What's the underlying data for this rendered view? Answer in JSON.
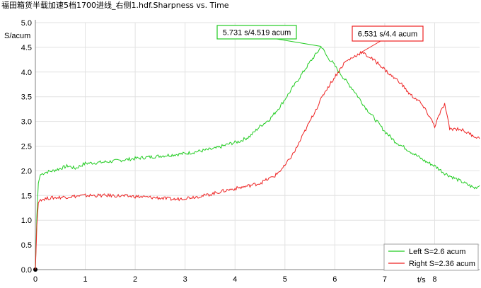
{
  "chart_data": {
    "type": "line",
    "title": "福田箱货半载加速5档1700进线_右侧1.hdf.Sharpness vs. Time",
    "ylabel": "S/acum",
    "xlabel": "t/s",
    "xlim": [
      0,
      8.9
    ],
    "ylim": [
      0,
      5.0
    ],
    "x_ticks": [
      0,
      1,
      2,
      3,
      4,
      5,
      6,
      7,
      8
    ],
    "y_ticks": [
      0.0,
      0.5,
      1.0,
      1.5,
      2.0,
      2.5,
      3.0,
      3.5,
      4.0,
      4.5,
      5.0
    ],
    "grid": true,
    "legend_position": "bottom-right",
    "series": [
      {
        "name": "Left S=2.6 acum",
        "color": "#22cc22",
        "points": [
          [
            0.0,
            0.0
          ],
          [
            0.03,
            1.1
          ],
          [
            0.06,
            1.75
          ],
          [
            0.1,
            1.92
          ],
          [
            0.2,
            1.97
          ],
          [
            0.35,
            2.0
          ],
          [
            0.5,
            2.05
          ],
          [
            0.65,
            2.1
          ],
          [
            0.8,
            2.05
          ],
          [
            1.0,
            2.15
          ],
          [
            1.3,
            2.17
          ],
          [
            1.6,
            2.2
          ],
          [
            2.0,
            2.25
          ],
          [
            2.5,
            2.3
          ],
          [
            3.0,
            2.35
          ],
          [
            3.3,
            2.4
          ],
          [
            3.6,
            2.45
          ],
          [
            3.9,
            2.55
          ],
          [
            4.1,
            2.6
          ],
          [
            4.3,
            2.7
          ],
          [
            4.5,
            2.9
          ],
          [
            4.7,
            3.05
          ],
          [
            4.9,
            3.3
          ],
          [
            5.1,
            3.6
          ],
          [
            5.3,
            3.9
          ],
          [
            5.5,
            4.2
          ],
          [
            5.65,
            4.4
          ],
          [
            5.731,
            4.519
          ],
          [
            5.85,
            4.3
          ],
          [
            5.95,
            4.2
          ],
          [
            6.05,
            4.05
          ],
          [
            6.2,
            3.85
          ],
          [
            6.4,
            3.6
          ],
          [
            6.6,
            3.3
          ],
          [
            6.8,
            3.05
          ],
          [
            7.0,
            2.8
          ],
          [
            7.2,
            2.6
          ],
          [
            7.5,
            2.4
          ],
          [
            7.8,
            2.2
          ],
          [
            8.0,
            2.1
          ],
          [
            8.2,
            1.95
          ],
          [
            8.4,
            1.85
          ],
          [
            8.6,
            1.75
          ],
          [
            8.8,
            1.65
          ],
          [
            8.9,
            1.7
          ]
        ]
      },
      {
        "name": "Right S=2.36 acum",
        "color": "#ee2222",
        "points": [
          [
            0.0,
            0.0
          ],
          [
            0.03,
            0.9
          ],
          [
            0.06,
            1.35
          ],
          [
            0.1,
            1.42
          ],
          [
            0.3,
            1.45
          ],
          [
            0.6,
            1.47
          ],
          [
            1.0,
            1.5
          ],
          [
            1.5,
            1.5
          ],
          [
            2.0,
            1.48
          ],
          [
            2.5,
            1.45
          ],
          [
            2.8,
            1.42
          ],
          [
            3.0,
            1.45
          ],
          [
            3.4,
            1.5
          ],
          [
            3.8,
            1.6
          ],
          [
            4.2,
            1.68
          ],
          [
            4.5,
            1.75
          ],
          [
            4.8,
            1.9
          ],
          [
            5.0,
            2.1
          ],
          [
            5.2,
            2.4
          ],
          [
            5.4,
            2.8
          ],
          [
            5.6,
            3.2
          ],
          [
            5.8,
            3.6
          ],
          [
            6.0,
            3.9
          ],
          [
            6.2,
            4.2
          ],
          [
            6.4,
            4.32
          ],
          [
            6.531,
            4.4
          ],
          [
            6.7,
            4.3
          ],
          [
            6.9,
            4.15
          ],
          [
            7.1,
            3.95
          ],
          [
            7.3,
            3.8
          ],
          [
            7.5,
            3.55
          ],
          [
            7.7,
            3.4
          ],
          [
            7.9,
            3.1
          ],
          [
            8.0,
            2.9
          ],
          [
            8.1,
            3.15
          ],
          [
            8.2,
            3.35
          ],
          [
            8.3,
            2.85
          ],
          [
            8.5,
            2.85
          ],
          [
            8.7,
            2.75
          ],
          [
            8.9,
            2.65
          ]
        ]
      }
    ],
    "annotations": [
      {
        "label": "5.731 s/4.519 acum",
        "x": 5.731,
        "y": 4.519,
        "color": "#22cc22"
      },
      {
        "label": "6.531 s/4.4 acum",
        "x": 6.531,
        "y": 4.4,
        "color": "#ee2222"
      }
    ]
  }
}
